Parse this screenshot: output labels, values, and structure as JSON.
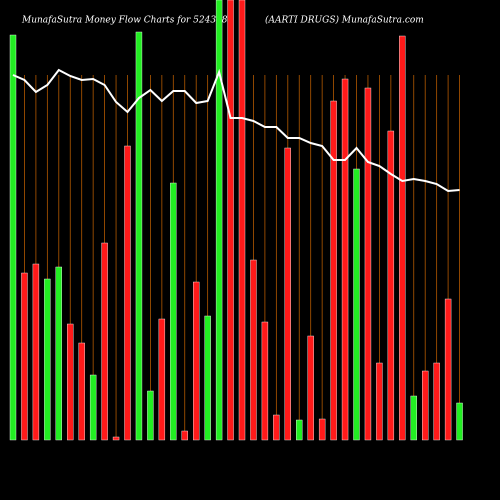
{
  "chart_data": {
    "type": "bar",
    "title": "MunafaSutra  Money Flow  Charts for 524348",
    "subtitle": "(AARTI DRUGS) MunafaSutra.com",
    "categories": [
      null,
      null,
      null,
      null,
      null,
      null,
      null,
      null,
      null,
      null,
      null,
      null,
      null,
      null,
      null,
      null,
      null,
      null,
      null,
      null,
      null,
      null,
      null,
      null,
      null,
      null,
      null,
      null,
      null,
      null,
      null,
      null,
      null,
      null,
      null,
      null,
      null,
      null,
      null,
      null
    ],
    "values": [
      405,
      167,
      176,
      161,
      173,
      116,
      97,
      65,
      197,
      3,
      294,
      408,
      49,
      121,
      257,
      9,
      158,
      124,
      440,
      440,
      440,
      180,
      118,
      25,
      292,
      20,
      104,
      21,
      339,
      361,
      271,
      352,
      77,
      309,
      404,
      44,
      69,
      77,
      141,
      37
    ],
    "colors": [
      "#22ee22",
      "#ff1a1a",
      "#ff1a1a",
      "#22ee22",
      "#22ee22",
      "#ff1a1a",
      "#ff1a1a",
      "#22ee22",
      "#ff1a1a",
      "#ff1a1a",
      "#ff1a1a",
      "#22ee22",
      "#22ee22",
      "#ff1a1a",
      "#22ee22",
      "#ff1a1a",
      "#ff1a1a",
      "#22ee22",
      "#22ee22",
      "#ff1a1a",
      "#ff1a1a",
      "#ff1a1a",
      "#ff1a1a",
      "#ff1a1a",
      "#ff1a1a",
      "#22ee22",
      "#ff1a1a",
      "#ff1a1a",
      "#ff1a1a",
      "#ff1a1a",
      "#22ee22",
      "#ff1a1a",
      "#ff1a1a",
      "#ff1a1a",
      "#ff1a1a",
      "#22ee22",
      "#ff1a1a",
      "#ff1a1a",
      "#ff1a1a",
      "#22ee22"
    ],
    "line": {
      "color": "#ffffff",
      "values": [
        365,
        360,
        348,
        355,
        370,
        364,
        360,
        361,
        355,
        338,
        328,
        342,
        350,
        339,
        349,
        349,
        337,
        339,
        368,
        322,
        322,
        319,
        313,
        313,
        302,
        302,
        297,
        294,
        280,
        280,
        292,
        278,
        274,
        266,
        259,
        261,
        259,
        256,
        249,
        250
      ]
    },
    "ylim": [
      0,
      440
    ],
    "grid": true,
    "grid_color": "#b35900"
  }
}
